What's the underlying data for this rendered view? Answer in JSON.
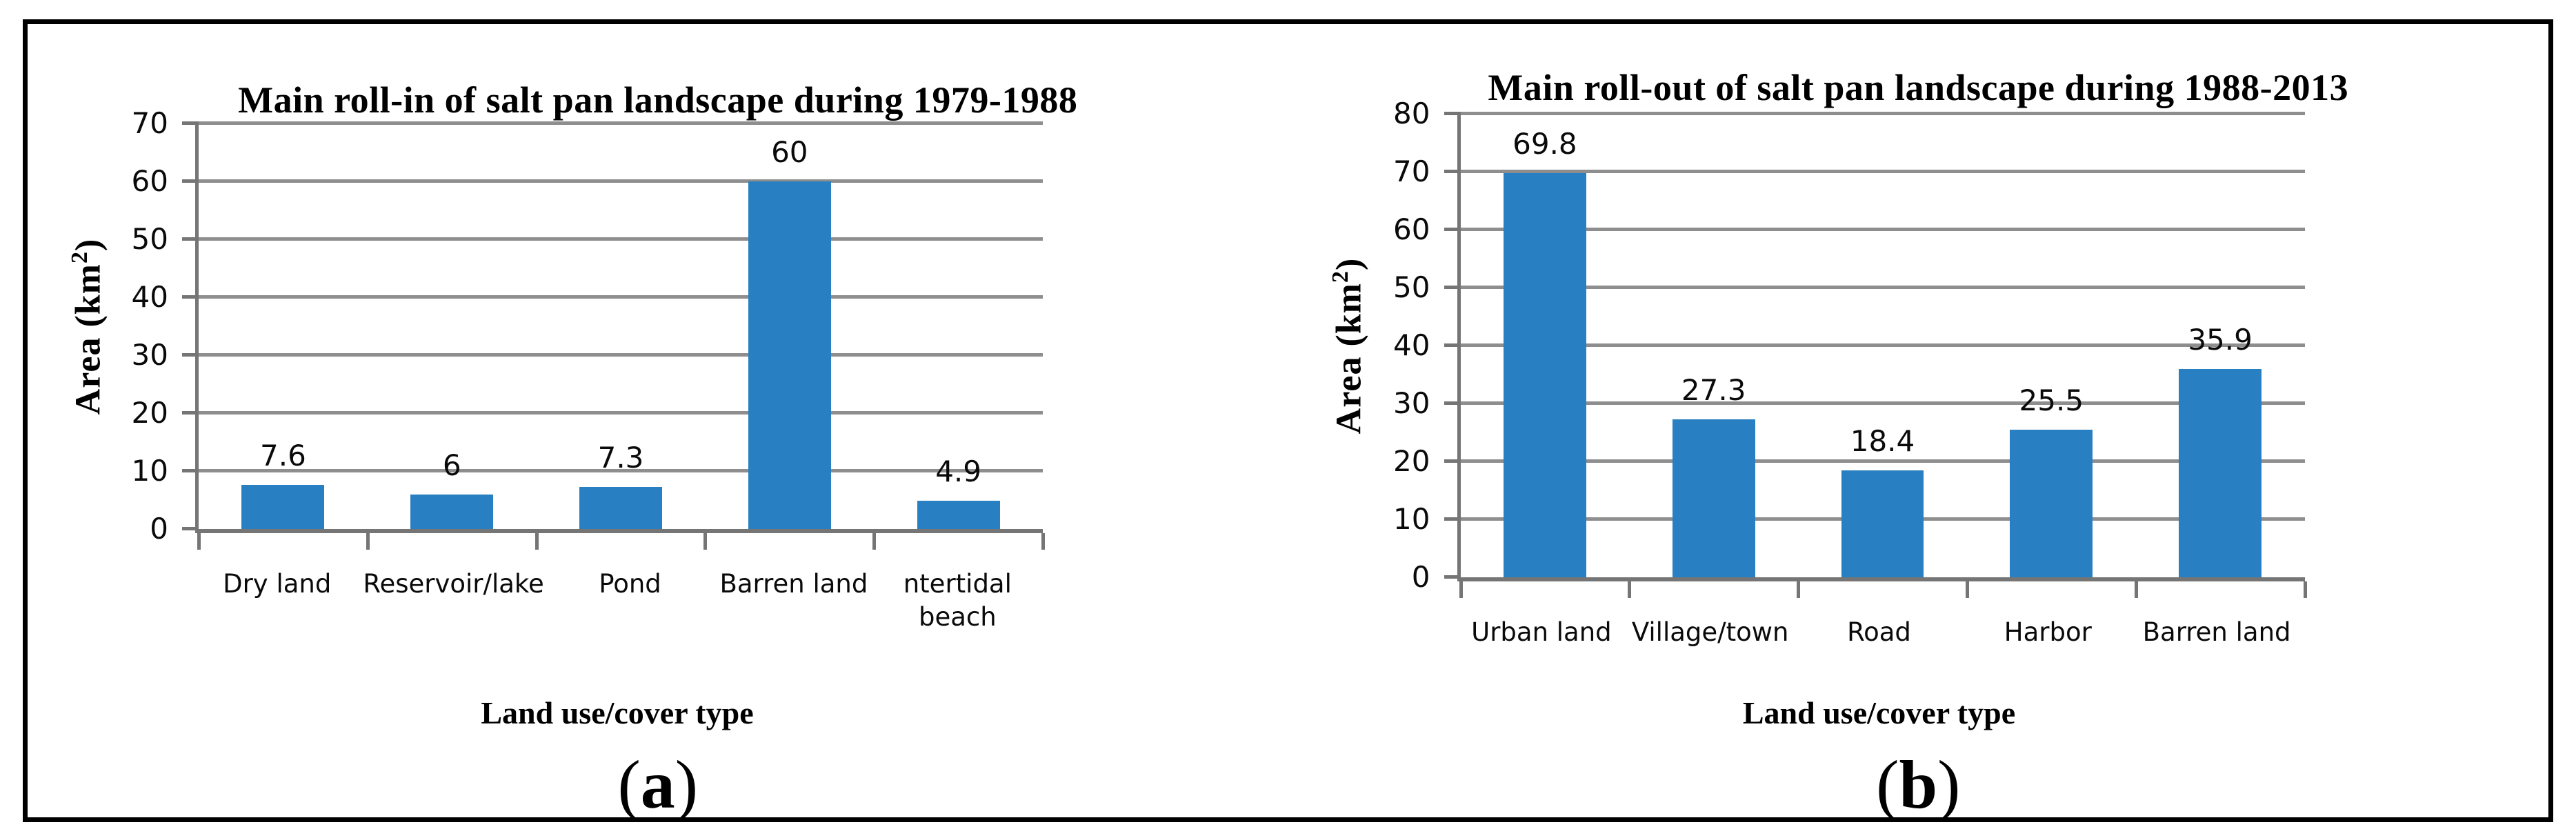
{
  "figure": {
    "background_color": "#ffffff",
    "border_color": "#000000"
  },
  "chart_data": [
    {
      "type": "bar",
      "panel": "a",
      "title": "Main roll-in  of salt pan landscape during 1979-1988",
      "xlabel": "Land use/cover type",
      "ylabel": "Area (km²)",
      "ylabel_main": "Area (km",
      "ylabel_sup": "2",
      "ylabel_close": ")",
      "categories": [
        "Dry land",
        "Reservoir/lake",
        "Pond",
        "Barren land",
        "ntertidal beach"
      ],
      "values": [
        7.6,
        6,
        7.3,
        60,
        4.9
      ],
      "value_labels": [
        "7.6",
        "6",
        "7.3",
        "60",
        "4.9"
      ],
      "ylim": [
        0,
        70
      ],
      "yticks": [
        0,
        10,
        20,
        30,
        40,
        50,
        60,
        70
      ],
      "grid": true,
      "legend_position": "none",
      "bar_color": "#2880c2",
      "gridline_color": "#8e8e8e",
      "axis_color": "#757575",
      "panel_label": "(a)",
      "panel_label_open": "(",
      "panel_label_letter": "a",
      "panel_label_close": ")"
    },
    {
      "type": "bar",
      "panel": "b",
      "title": "Main roll-out of salt pan landscape during 1988-2013",
      "xlabel": "Land use/cover type",
      "ylabel": "Area (km²)",
      "ylabel_main": "Area (km",
      "ylabel_sup": "2",
      "ylabel_close": ")",
      "categories": [
        "Urban land",
        "Village/town",
        "Road",
        "Harbor",
        "Barren land"
      ],
      "values": [
        69.8,
        27.3,
        18.4,
        25.5,
        35.9
      ],
      "value_labels": [
        "69.8",
        "27.3",
        "18.4",
        "25.5",
        "35.9"
      ],
      "ylim": [
        0,
        80
      ],
      "yticks": [
        0,
        10,
        20,
        30,
        40,
        50,
        60,
        70,
        80
      ],
      "grid": true,
      "legend_position": "none",
      "bar_color": "#2880c2",
      "gridline_color": "#8e8e8e",
      "axis_color": "#757575",
      "panel_label": "(b)",
      "panel_label_open": "(",
      "panel_label_letter": "b",
      "panel_label_close": ")"
    }
  ]
}
